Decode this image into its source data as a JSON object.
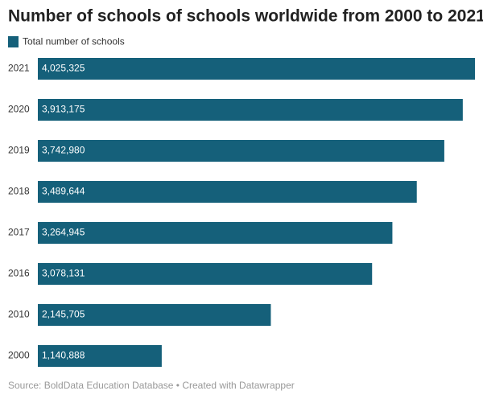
{
  "chart_data": {
    "type": "bar",
    "orientation": "horizontal",
    "title": "Number of schools of schools worldwide from 2000 to 2021",
    "categories": [
      "2021",
      "2020",
      "2019",
      "2018",
      "2017",
      "2016",
      "2010",
      "2000"
    ],
    "series": [
      {
        "name": "Total number of schools",
        "color": "#15607a",
        "values": [
          4025325,
          3913175,
          3742980,
          3489644,
          3264945,
          3078131,
          2145705,
          1140888
        ],
        "value_labels": [
          "4,025,325",
          "3,913,175",
          "3,742,980",
          "3,489,644",
          "3,264,945",
          "3,078,131",
          "2,145,705",
          "1,140,888"
        ]
      }
    ],
    "source": "Source: BoldData Education Database • Created with Datawrapper"
  }
}
